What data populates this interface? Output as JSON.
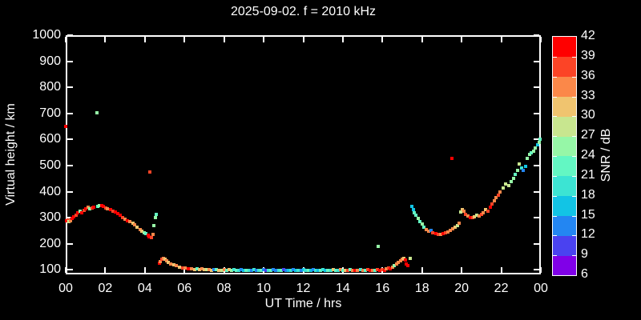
{
  "chart_data": {
    "type": "scatter",
    "title": "2025-09-02. f = 2010 kHz",
    "xlabel": "UT Time / hrs",
    "ylabel": "Virtual height / km",
    "background_color": "#000000",
    "axis_color": "#ffffff",
    "xlim": [
      0,
      24
    ],
    "ylim": [
      83,
      1000
    ],
    "x_tick_values": [
      0,
      2,
      4,
      6,
      8,
      10,
      12,
      14,
      16,
      18,
      20,
      22,
      24
    ],
    "x_tick_labels": [
      "00",
      "02",
      "04",
      "06",
      "08",
      "10",
      "12",
      "14",
      "16",
      "18",
      "20",
      "22",
      "00"
    ],
    "y_tick_values": [
      100,
      200,
      300,
      400,
      500,
      600,
      700,
      800,
      900,
      1000
    ],
    "y_tick_labels": [
      "100",
      "200",
      "300",
      "400",
      "500",
      "600",
      "700",
      "800",
      "900",
      "1000"
    ],
    "colorbar": {
      "label": "SNR / dB",
      "min": 6,
      "max": 42,
      "step": 3,
      "tick_labels": [
        "6",
        "9",
        "12",
        "15",
        "18",
        "21",
        "24",
        "27",
        "30",
        "33",
        "36",
        "39",
        "42"
      ],
      "colors_low_to_high": [
        "#8000e8",
        "#4a42f0",
        "#2386f2",
        "#12c4e5",
        "#3ce4d3",
        "#63f7c3",
        "#96f7a7",
        "#c8e68f",
        "#f0c46f",
        "#fb8849",
        "#fc4426",
        "#ff0000"
      ]
    },
    "points_format": [
      "ut_hours",
      "virtual_height_km",
      "snr_db"
    ],
    "points": [
      [
        0.02,
        650,
        40
      ],
      [
        0.05,
        288,
        40
      ],
      [
        0.12,
        292,
        37
      ],
      [
        0.18,
        285,
        28
      ],
      [
        0.25,
        290,
        34
      ],
      [
        0.32,
        297,
        40
      ],
      [
        0.42,
        304,
        40
      ],
      [
        0.52,
        311,
        37
      ],
      [
        0.62,
        318,
        40
      ],
      [
        0.72,
        325,
        25
      ],
      [
        0.82,
        320,
        40
      ],
      [
        0.92,
        329,
        37
      ],
      [
        1.02,
        336,
        40
      ],
      [
        1.12,
        340,
        34
      ],
      [
        1.22,
        334,
        25
      ],
      [
        1.32,
        337,
        37
      ],
      [
        1.42,
        341,
        40
      ],
      [
        1.58,
        702,
        25
      ],
      [
        1.62,
        344,
        22
      ],
      [
        1.72,
        348,
        25
      ],
      [
        1.82,
        347,
        40
      ],
      [
        1.92,
        343,
        40
      ],
      [
        2.02,
        338,
        37
      ],
      [
        2.12,
        334,
        34
      ],
      [
        2.25,
        330,
        40
      ],
      [
        2.38,
        326,
        37
      ],
      [
        2.5,
        321,
        40
      ],
      [
        2.62,
        315,
        40
      ],
      [
        2.75,
        309,
        40
      ],
      [
        2.88,
        302,
        37
      ],
      [
        3.0,
        296,
        34
      ],
      [
        3.12,
        290,
        40
      ],
      [
        3.25,
        285,
        34
      ],
      [
        3.38,
        280,
        31
      ],
      [
        3.5,
        274,
        34
      ],
      [
        3.62,
        264,
        31
      ],
      [
        3.75,
        254,
        34
      ],
      [
        3.85,
        248,
        31
      ],
      [
        3.95,
        244,
        25
      ],
      [
        4.05,
        240,
        22
      ],
      [
        4.15,
        234,
        40
      ],
      [
        4.22,
        228,
        40
      ],
      [
        4.25,
        476,
        37
      ],
      [
        4.32,
        224,
        37
      ],
      [
        4.4,
        237,
        34
      ],
      [
        4.45,
        270,
        25
      ],
      [
        4.52,
        302,
        25
      ],
      [
        4.58,
        312,
        22
      ],
      [
        4.72,
        126,
        40
      ],
      [
        4.78,
        133,
        34
      ],
      [
        4.85,
        140,
        37
      ],
      [
        4.92,
        145,
        34
      ],
      [
        5.0,
        140,
        31
      ],
      [
        5.08,
        134,
        34
      ],
      [
        5.18,
        128,
        31
      ],
      [
        5.32,
        123,
        34
      ],
      [
        5.45,
        119,
        31
      ],
      [
        5.6,
        116,
        34
      ],
      [
        5.75,
        112,
        31
      ],
      [
        5.9,
        109,
        37
      ],
      [
        6.05,
        107,
        34
      ],
      [
        6.2,
        105,
        40
      ],
      [
        6.35,
        103,
        34
      ],
      [
        6.5,
        102,
        31
      ],
      [
        6.62,
        104,
        22
      ],
      [
        6.75,
        101,
        31
      ],
      [
        6.88,
        103,
        34
      ],
      [
        7.0,
        100,
        31
      ],
      [
        7.12,
        102,
        28
      ],
      [
        7.25,
        100,
        34
      ],
      [
        7.38,
        98,
        31
      ],
      [
        7.5,
        100,
        13
      ],
      [
        7.62,
        101,
        22
      ],
      [
        7.75,
        99,
        31
      ],
      [
        7.88,
        98,
        28
      ],
      [
        8.0,
        100,
        34
      ],
      [
        8.12,
        99,
        22
      ],
      [
        8.25,
        100,
        31
      ],
      [
        8.38,
        98,
        25
      ],
      [
        8.5,
        100,
        19
      ],
      [
        8.62,
        99,
        22
      ],
      [
        8.75,
        98,
        19
      ],
      [
        8.88,
        100,
        13
      ],
      [
        9.0,
        99,
        16
      ],
      [
        9.12,
        98,
        22
      ],
      [
        9.25,
        99,
        19
      ],
      [
        9.38,
        98,
        13
      ],
      [
        9.5,
        100,
        19
      ],
      [
        9.62,
        99,
        13
      ],
      [
        9.75,
        98,
        19
      ],
      [
        9.88,
        99,
        22
      ],
      [
        10.0,
        100,
        13
      ],
      [
        10.12,
        98,
        10
      ],
      [
        10.25,
        99,
        19
      ],
      [
        10.38,
        98,
        22
      ],
      [
        10.5,
        100,
        13
      ],
      [
        10.62,
        98,
        13
      ],
      [
        10.75,
        99,
        19
      ],
      [
        10.88,
        98,
        22
      ],
      [
        11.0,
        100,
        10
      ],
      [
        11.12,
        98,
        13
      ],
      [
        11.25,
        99,
        16
      ],
      [
        11.38,
        98,
        19
      ],
      [
        11.5,
        100,
        13
      ],
      [
        11.62,
        98,
        16
      ],
      [
        11.75,
        99,
        19
      ],
      [
        11.88,
        98,
        13
      ],
      [
        12.0,
        100,
        16
      ],
      [
        12.12,
        98,
        19
      ],
      [
        12.25,
        99,
        22
      ],
      [
        12.38,
        98,
        16
      ],
      [
        12.5,
        100,
        13
      ],
      [
        12.62,
        98,
        19
      ],
      [
        12.75,
        99,
        16
      ],
      [
        12.88,
        98,
        22
      ],
      [
        13.0,
        100,
        19
      ],
      [
        13.12,
        98,
        16
      ],
      [
        13.25,
        99,
        22
      ],
      [
        13.38,
        98,
        19
      ],
      [
        13.5,
        100,
        31
      ],
      [
        13.62,
        99,
        22
      ],
      [
        13.75,
        98,
        19
      ],
      [
        13.88,
        100,
        34
      ],
      [
        14.0,
        98,
        22
      ],
      [
        14.12,
        99,
        31
      ],
      [
        14.25,
        98,
        37
      ],
      [
        14.38,
        100,
        22
      ],
      [
        14.5,
        98,
        34
      ],
      [
        14.62,
        99,
        40
      ],
      [
        14.75,
        98,
        34
      ],
      [
        14.88,
        100,
        19
      ],
      [
        15.0,
        99,
        34
      ],
      [
        15.12,
        98,
        22
      ],
      [
        15.25,
        100,
        37
      ],
      [
        15.38,
        98,
        40
      ],
      [
        15.5,
        99,
        34
      ],
      [
        15.62,
        98,
        22
      ],
      [
        15.75,
        100,
        37
      ],
      [
        15.8,
        190,
        25
      ],
      [
        15.88,
        99,
        40
      ],
      [
        16.0,
        101,
        37
      ],
      [
        16.1,
        99,
        40
      ],
      [
        16.2,
        104,
        34
      ],
      [
        16.3,
        108,
        37
      ],
      [
        16.4,
        104,
        40
      ],
      [
        16.5,
        111,
        34
      ],
      [
        16.6,
        116,
        25
      ],
      [
        16.7,
        122,
        34
      ],
      [
        16.8,
        128,
        34
      ],
      [
        16.9,
        135,
        34
      ],
      [
        17.0,
        140,
        34
      ],
      [
        17.08,
        145,
        31
      ],
      [
        17.15,
        138,
        40
      ],
      [
        17.22,
        124,
        40
      ],
      [
        17.3,
        118,
        40
      ],
      [
        17.4,
        144,
        28
      ],
      [
        17.48,
        345,
        16
      ],
      [
        17.55,
        332,
        16
      ],
      [
        17.62,
        320,
        22
      ],
      [
        17.7,
        309,
        22
      ],
      [
        17.8,
        297,
        25
      ],
      [
        17.9,
        286,
        22
      ],
      [
        18.0,
        275,
        25
      ],
      [
        18.1,
        264,
        22
      ],
      [
        18.22,
        255,
        34
      ],
      [
        18.35,
        248,
        34
      ],
      [
        18.45,
        251,
        13
      ],
      [
        18.55,
        243,
        37
      ],
      [
        18.68,
        239,
        40
      ],
      [
        18.82,
        236,
        37
      ],
      [
        18.95,
        237,
        34
      ],
      [
        19.05,
        239,
        40
      ],
      [
        19.18,
        242,
        37
      ],
      [
        19.3,
        246,
        34
      ],
      [
        19.42,
        251,
        34
      ],
      [
        19.5,
        528,
        40
      ],
      [
        19.55,
        257,
        34
      ],
      [
        19.68,
        264,
        31
      ],
      [
        19.78,
        271,
        28
      ],
      [
        19.88,
        280,
        34
      ],
      [
        19.95,
        322,
        28
      ],
      [
        20.02,
        332,
        31
      ],
      [
        20.1,
        324,
        34
      ],
      [
        20.2,
        313,
        37
      ],
      [
        20.32,
        306,
        34
      ],
      [
        20.45,
        302,
        40
      ],
      [
        20.55,
        300,
        37
      ],
      [
        20.65,
        305,
        31
      ],
      [
        20.75,
        311,
        28
      ],
      [
        20.88,
        306,
        34
      ],
      [
        21.0,
        312,
        37
      ],
      [
        21.1,
        320,
        34
      ],
      [
        21.2,
        331,
        31
      ],
      [
        21.32,
        326,
        37
      ],
      [
        21.45,
        340,
        40
      ],
      [
        21.55,
        352,
        37
      ],
      [
        21.65,
        364,
        34
      ],
      [
        21.75,
        377,
        34
      ],
      [
        21.85,
        387,
        37
      ],
      [
        21.95,
        399,
        34
      ],
      [
        22.08,
        413,
        28
      ],
      [
        22.22,
        429,
        28
      ],
      [
        22.38,
        424,
        28
      ],
      [
        22.52,
        438,
        25
      ],
      [
        22.62,
        452,
        25
      ],
      [
        22.72,
        466,
        22
      ],
      [
        22.82,
        482,
        25
      ],
      [
        22.92,
        506,
        28
      ],
      [
        23.02,
        492,
        19
      ],
      [
        23.12,
        482,
        13
      ],
      [
        23.22,
        498,
        16
      ],
      [
        23.32,
        527,
        25
      ],
      [
        23.42,
        543,
        25
      ],
      [
        23.52,
        549,
        22
      ],
      [
        23.62,
        556,
        25
      ],
      [
        23.72,
        568,
        25
      ],
      [
        23.82,
        580,
        16
      ],
      [
        23.9,
        590,
        25
      ],
      [
        23.97,
        600,
        22
      ]
    ]
  }
}
